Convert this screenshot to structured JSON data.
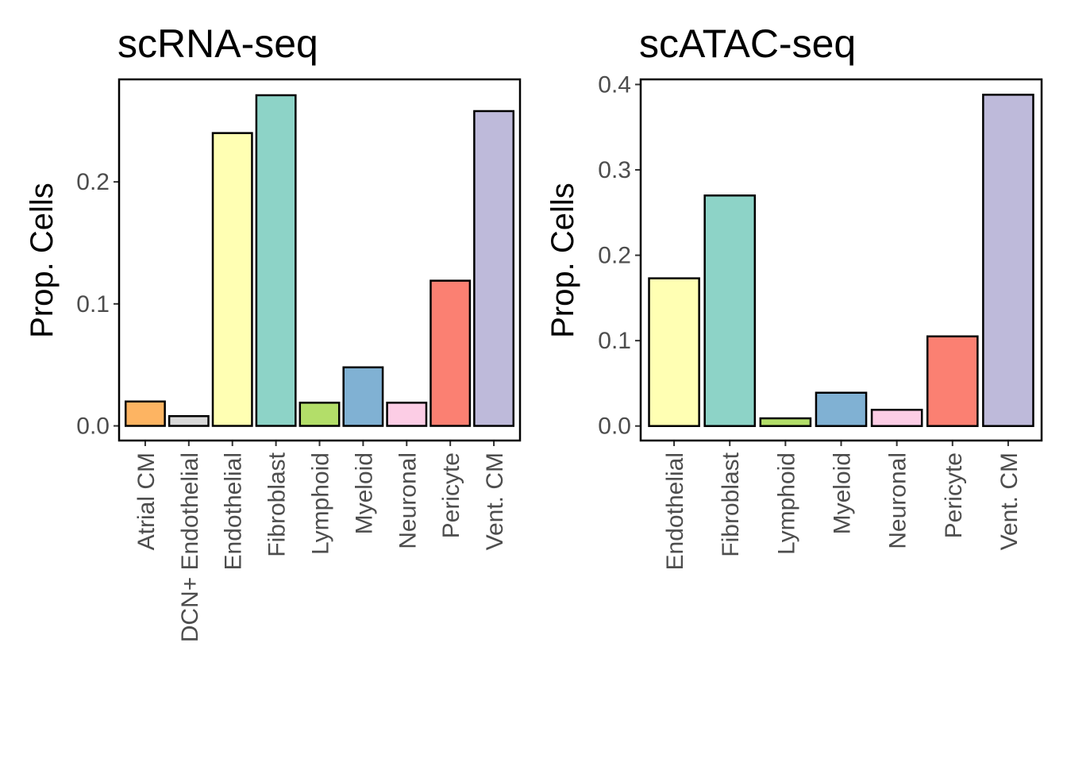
{
  "chart_data": [
    {
      "type": "bar",
      "title": "scRNA-seq",
      "xlabel": "",
      "ylabel": "Prop. Cells",
      "ylim": [
        -0.012,
        0.284
      ],
      "yticks": [
        0.0,
        0.1,
        0.2
      ],
      "ytick_labels": [
        "0.0",
        "0.1",
        "0.2"
      ],
      "grid": false,
      "categories": [
        "Atrial CM",
        "DCN+ Endothelial",
        "Endothelial",
        "Fibroblast",
        "Lymphoid",
        "Myeloid",
        "Neuronal",
        "Pericyte",
        "Vent. CM"
      ],
      "values": [
        0.02,
        0.008,
        0.24,
        0.271,
        0.019,
        0.048,
        0.019,
        0.119,
        0.258
      ],
      "colors": [
        "#FDB462",
        "#D9D9D9",
        "#FFFFB3",
        "#8DD3C7",
        "#B3DE69",
        "#80B1D3",
        "#FCCDE5",
        "#FB8072",
        "#BEBADA"
      ]
    },
    {
      "type": "bar",
      "title": "scATAC-seq",
      "xlabel": "",
      "ylabel": "Prop. Cells",
      "ylim": [
        -0.017,
        0.406
      ],
      "yticks": [
        0.0,
        0.1,
        0.2,
        0.3,
        0.4
      ],
      "ytick_labels": [
        "0.0",
        "0.1",
        "0.2",
        "0.3",
        "0.4"
      ],
      "grid": false,
      "categories": [
        "Endothelial",
        "Fibroblast",
        "Lymphoid",
        "Myeloid",
        "Neuronal",
        "Pericyte",
        "Vent. CM"
      ],
      "values": [
        0.173,
        0.27,
        0.009,
        0.039,
        0.019,
        0.105,
        0.388
      ],
      "colors": [
        "#FFFFB3",
        "#8DD3C7",
        "#B3DE69",
        "#80B1D3",
        "#FCCDE5",
        "#FB8072",
        "#BEBADA"
      ]
    }
  ]
}
